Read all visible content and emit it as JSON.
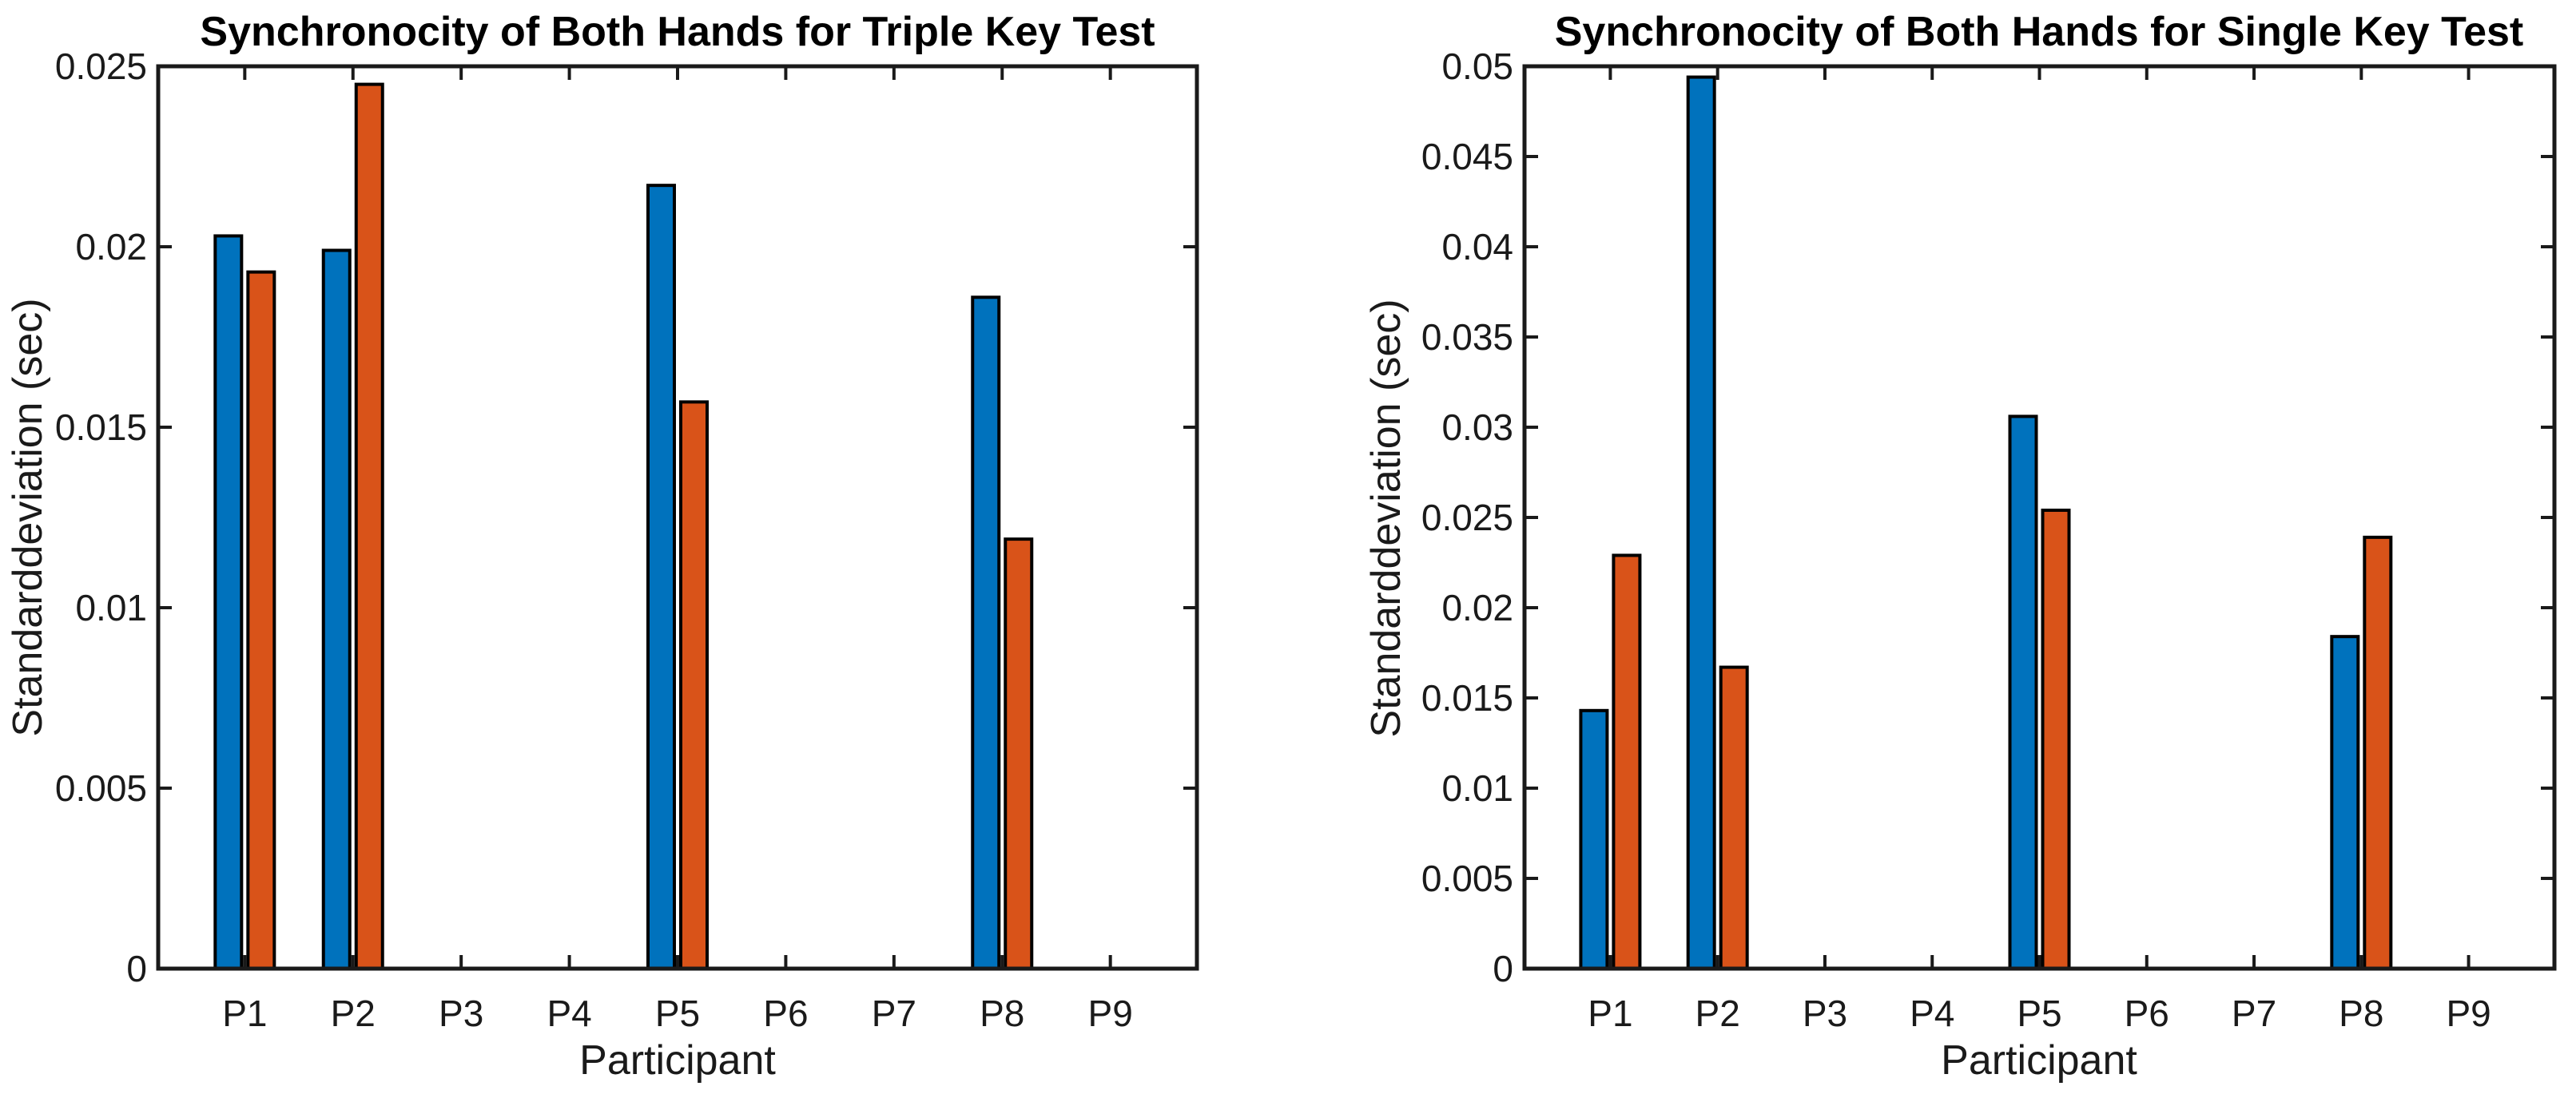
{
  "page": {
    "background": "#ffffff"
  },
  "colors": {
    "series_blue": "#0072BD",
    "series_orange": "#D95319",
    "bar_edge": "#000000",
    "axis": "#1a1a1a",
    "title_text": "#000000"
  },
  "chart_data": [
    {
      "type": "bar",
      "title": "Synchronocity of Both Hands for Triple Key Test",
      "xlabel": "Participant",
      "ylabel": "Standarddeviation (sec)",
      "categories": [
        "P1",
        "P2",
        "P3",
        "P4",
        "P5",
        "P6",
        "P7",
        "P8",
        "P9"
      ],
      "series": [
        {
          "name": "blue",
          "color": "#0072BD",
          "values": [
            0.0203,
            0.0199,
            0,
            0,
            0.0217,
            0,
            0,
            0.0186,
            0
          ]
        },
        {
          "name": "orange",
          "color": "#D95319",
          "values": [
            0.0193,
            0.0245,
            0,
            0,
            0.0157,
            0,
            0,
            0.0119,
            0
          ]
        }
      ],
      "ylim": [
        0,
        0.025
      ],
      "yticks": [
        0,
        0.005,
        0.01,
        0.015,
        0.02,
        0.025
      ],
      "yticklabels": [
        "0",
        "0.005",
        "0.01",
        "0.015",
        "0.02",
        "0.025"
      ],
      "grid": false,
      "legend": null,
      "box": true
    },
    {
      "type": "bar",
      "title": "Synchronocity of Both Hands for Single Key Test",
      "xlabel": "Participant",
      "ylabel": "Standarddeviation (sec)",
      "categories": [
        "P1",
        "P2",
        "P3",
        "P4",
        "P5",
        "P6",
        "P7",
        "P8",
        "P9"
      ],
      "series": [
        {
          "name": "blue",
          "color": "#0072BD",
          "values": [
            0.0143,
            0.0494,
            0,
            0,
            0.0306,
            0,
            0,
            0.0184,
            0
          ]
        },
        {
          "name": "orange",
          "color": "#D95319",
          "values": [
            0.0229,
            0.0167,
            0,
            0,
            0.0254,
            0,
            0,
            0.0239,
            0
          ]
        }
      ],
      "ylim": [
        0,
        0.05
      ],
      "yticks": [
        0,
        0.005,
        0.01,
        0.015,
        0.02,
        0.025,
        0.03,
        0.035,
        0.04,
        0.045,
        0.05
      ],
      "yticklabels": [
        "0",
        "0.005",
        "0.01",
        "0.015",
        "0.02",
        "0.025",
        "0.03",
        "0.035",
        "0.04",
        "0.045",
        "0.05"
      ],
      "grid": false,
      "legend": null,
      "box": true
    }
  ]
}
